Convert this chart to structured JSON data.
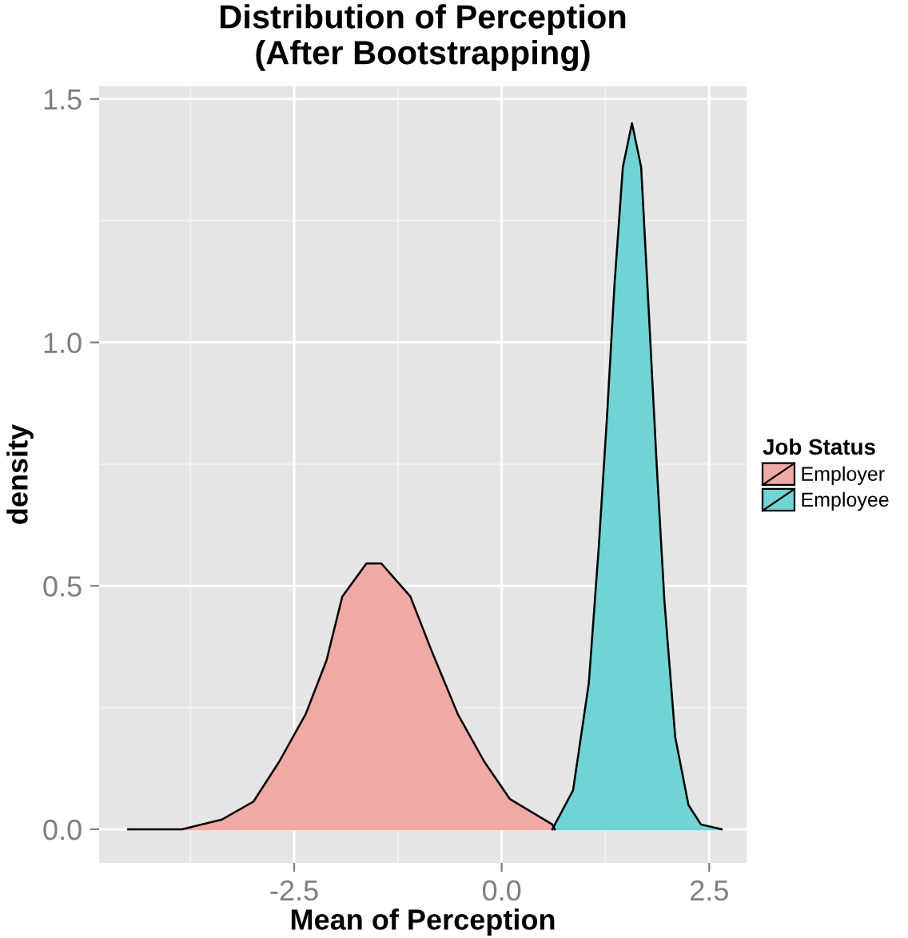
{
  "chart_data": {
    "type": "area",
    "title": "Distribution of Perception\n(After Bootstrapping)",
    "xlabel": "Mean of Perception",
    "ylabel": "density",
    "legend_title": "Job Status",
    "legend": "right",
    "grid": true,
    "xlim": [
      -4.85,
      2.95
    ],
    "ylim": [
      -0.069,
      1.526
    ],
    "xticks": [
      {
        "value": -2.5,
        "label": "-2.5"
      },
      {
        "value": 0,
        "label": "0.0"
      },
      {
        "value": 2.5,
        "label": "2.5"
      }
    ],
    "yticks": [
      {
        "value": 0,
        "label": "0.0"
      },
      {
        "value": 0.5,
        "label": "0.5"
      },
      {
        "value": 1.0,
        "label": "1.0"
      },
      {
        "value": 1.5,
        "label": "1.5"
      }
    ],
    "series": [
      {
        "name": "Employer",
        "color": "#efaaa6",
        "x": [
          -4.5,
          -3.85,
          -3.37,
          -2.99,
          -2.68,
          -2.36,
          -2.11,
          -1.92,
          -1.63,
          -1.45,
          -1.1,
          -0.85,
          -0.53,
          -0.21,
          0.1,
          0.61,
          0.64
        ],
        "values": [
          0,
          0,
          0.02,
          0.057,
          0.139,
          0.237,
          0.347,
          0.478,
          0.546,
          0.546,
          0.478,
          0.369,
          0.237,
          0.139,
          0.062,
          0.01,
          0
        ]
      },
      {
        "name": "Employee",
        "color": "#72d3d5",
        "x": [
          0.61,
          0.86,
          1.05,
          1.17,
          1.27,
          1.36,
          1.46,
          1.57,
          1.68,
          1.77,
          1.87,
          1.96,
          2.09,
          2.25,
          2.4,
          2.65
        ],
        "values": [
          0,
          0.08,
          0.3,
          0.58,
          0.85,
          1.12,
          1.36,
          1.45,
          1.36,
          1.07,
          0.74,
          0.47,
          0.19,
          0.05,
          0.01,
          0
        ]
      }
    ]
  }
}
